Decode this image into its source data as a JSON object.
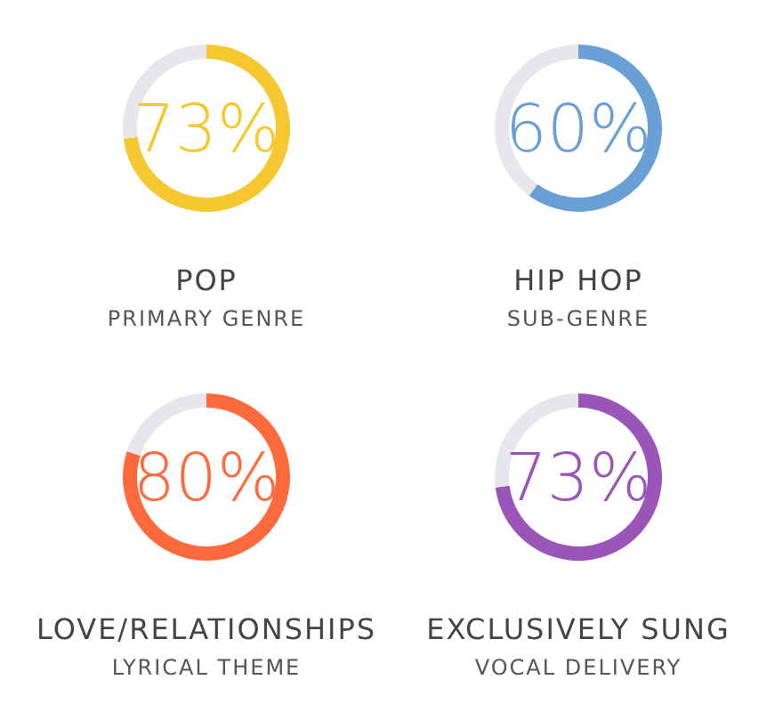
{
  "chart_data": [
    {
      "type": "donut",
      "title": "POP",
      "subtitle": "PRIMARY GENRE",
      "categories": [
        null,
        null
      ],
      "values": [
        73,
        27
      ],
      "colors": [
        "#f5c830",
        "#e6e6ec"
      ],
      "value_labels": [
        "73%",
        null
      ]
    },
    {
      "type": "donut",
      "title": "HIP HOP",
      "subtitle": "SUB-GENRE",
      "categories": [
        null,
        null
      ],
      "values": [
        60,
        40
      ],
      "colors": [
        "#6a9fd6",
        "#e6e6ec"
      ],
      "value_labels": [
        "60%",
        null
      ]
    },
    {
      "type": "donut",
      "title": "LOVE/RELATIONSHIPS",
      "subtitle": "LYRICAL THEME",
      "categories": [
        null,
        null
      ],
      "values": [
        80,
        20
      ],
      "colors": [
        "#ff6a3c",
        "#e6e6ec"
      ],
      "value_labels": [
        "80%",
        null
      ]
    },
    {
      "type": "donut",
      "title": "EXCLUSIVELY SUNG",
      "subtitle": "VOCAL DELIVERY",
      "categories": [
        null,
        null
      ],
      "values": [
        73,
        27
      ],
      "colors": [
        "#9b55b8",
        "#e6e6ec"
      ],
      "value_labels": [
        "73%",
        null
      ]
    }
  ]
}
